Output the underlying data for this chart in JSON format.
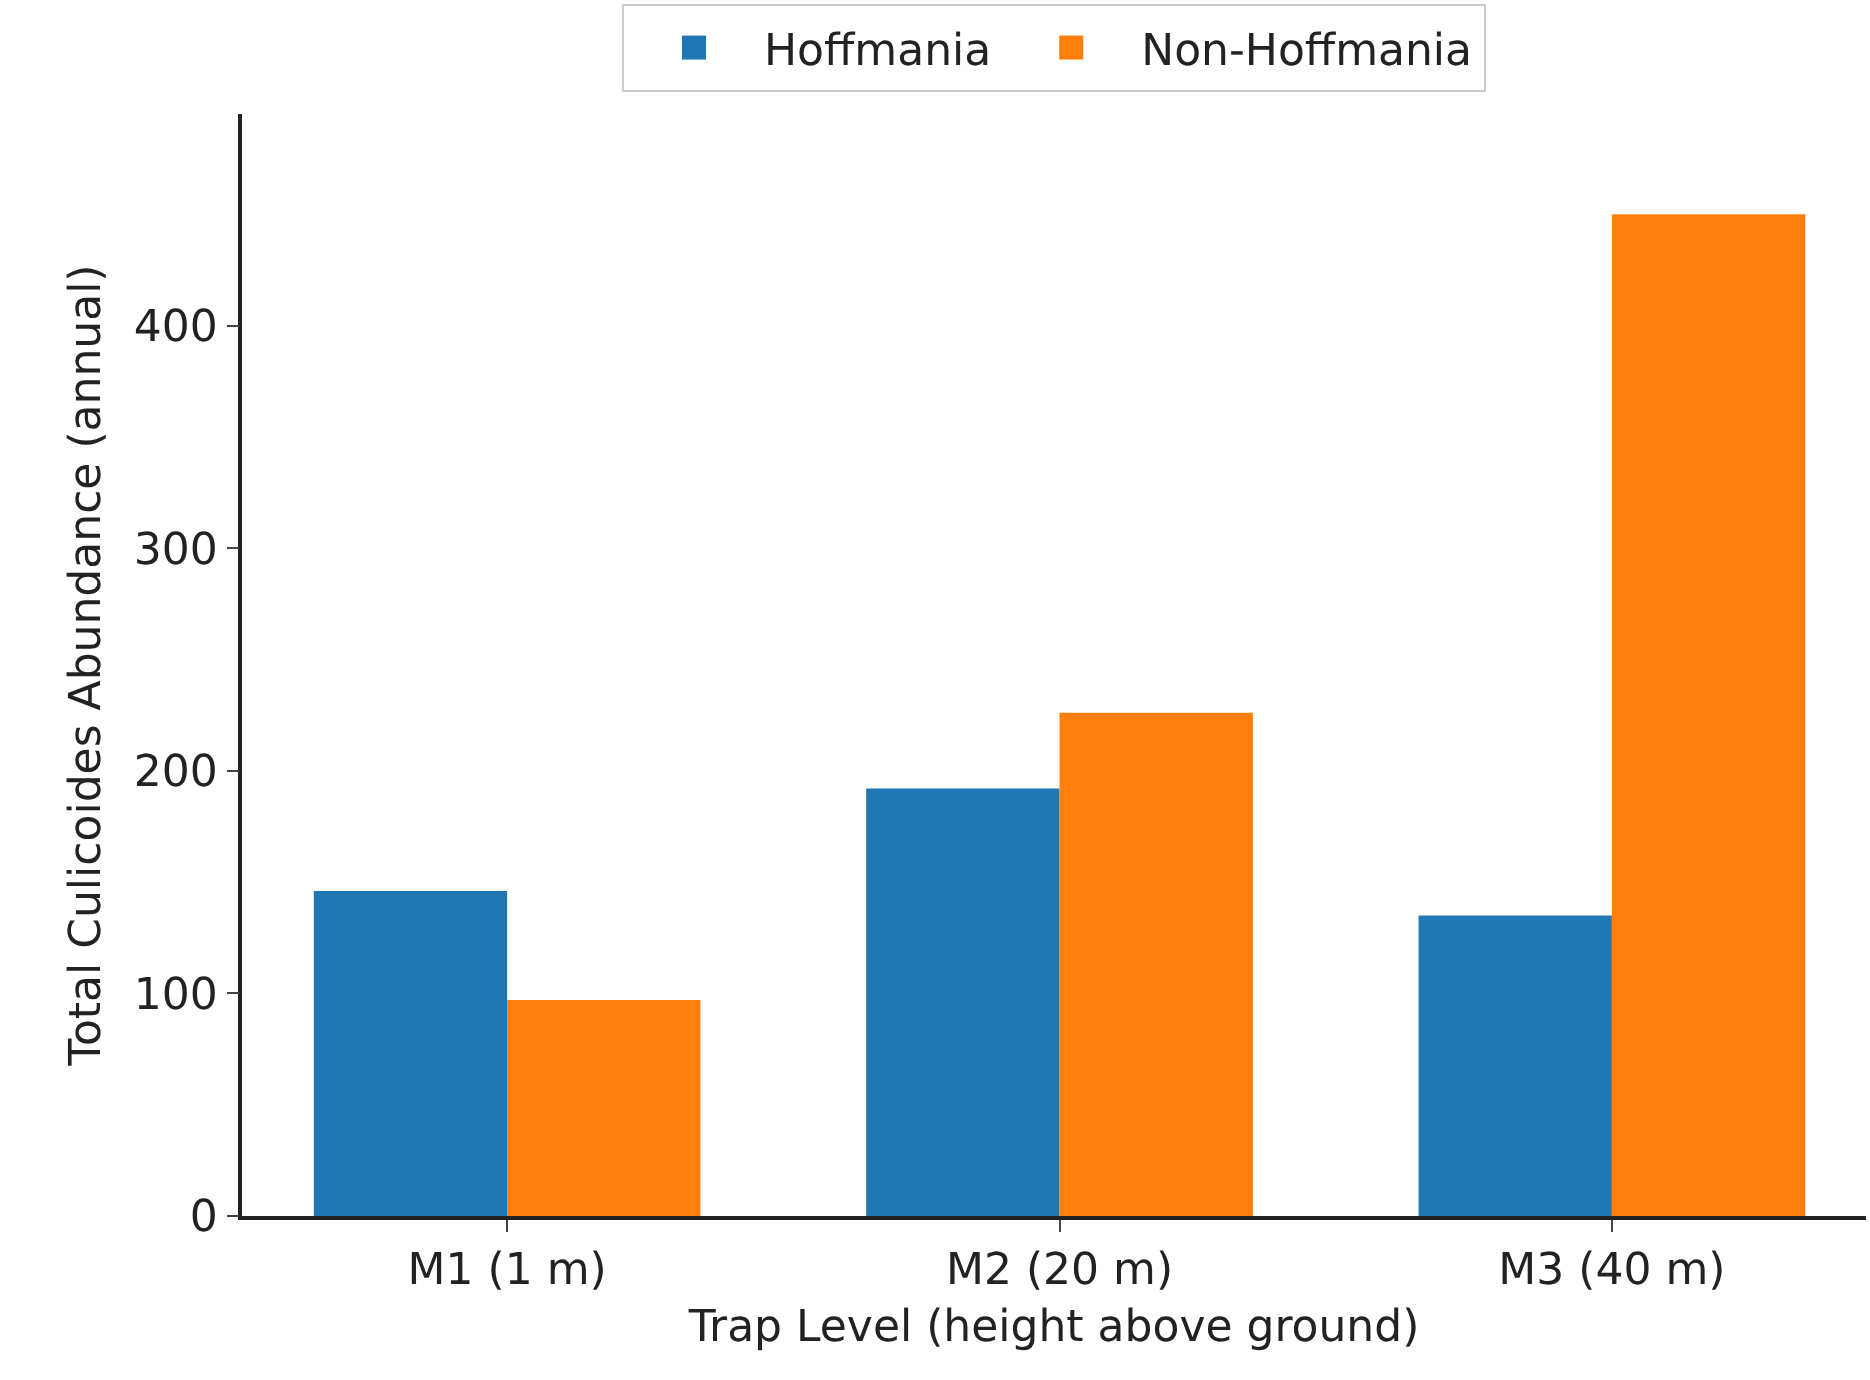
{
  "chart_data": {
    "type": "bar",
    "xlabel": "Trap Level (height above ground)",
    "ylabel": "Total Culicoides Abundance (annual)",
    "categories": [
      "M1 (1 m)",
      "M2 (20 m)",
      "M3 (40 m)"
    ],
    "series": [
      {
        "name": "Hoffmania",
        "color": "#1f77b4",
        "values": [
          146,
          192,
          135
        ]
      },
      {
        "name": "Non-Hoffmania",
        "color": "#ff7f0e",
        "values": [
          97,
          226,
          450
        ]
      }
    ],
    "ylim": [
      0,
      495
    ],
    "yticks": [
      0,
      100,
      200,
      300,
      400
    ],
    "grid": false,
    "legend": "top"
  }
}
